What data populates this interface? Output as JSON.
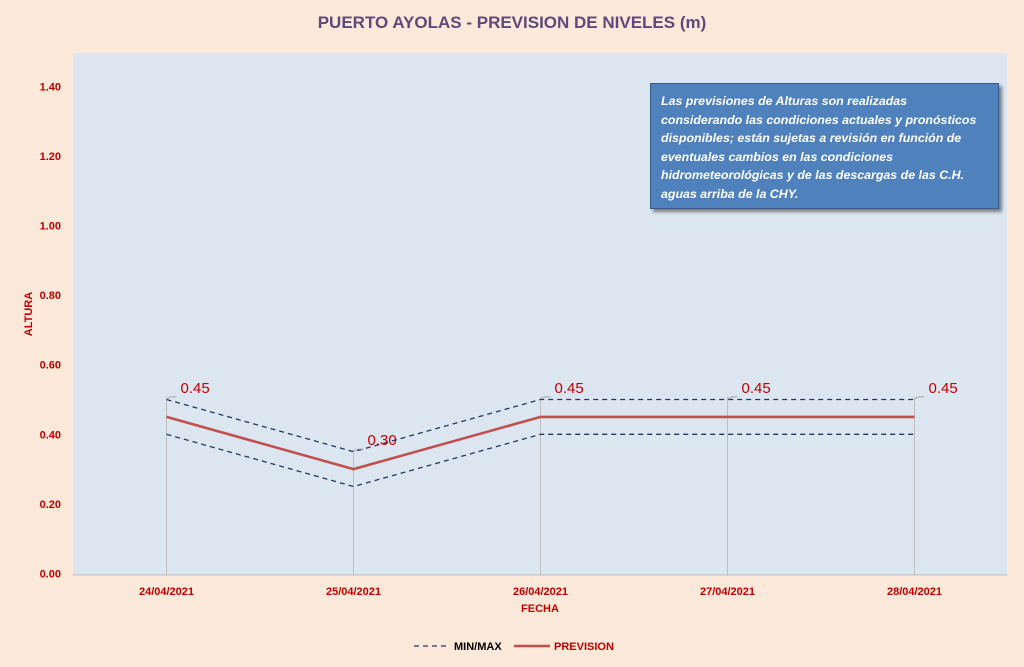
{
  "chart_data": {
    "type": "line",
    "title": "PUERTO AYOLAS - PREVISION DE NIVELES (m)",
    "xlabel": "FECHA",
    "ylabel": "ALTURA",
    "categories": [
      "24/04/2021",
      "25/04/2021",
      "26/04/2021",
      "27/04/2021",
      "28/04/2021"
    ],
    "ylim": [
      0,
      1.4
    ],
    "yticks": [
      "0.00",
      "0.20",
      "0.40",
      "0.60",
      "0.80",
      "1.00",
      "1.20",
      "1.40"
    ],
    "grid": false,
    "legend_position": "bottom",
    "series": [
      {
        "name": "MIN/MAX",
        "style": "dashed",
        "color": "#1f3864",
        "role": "max",
        "values": [
          0.5,
          0.35,
          0.5,
          0.5,
          0.5
        ]
      },
      {
        "name": "MIN/MAX",
        "style": "dashed",
        "color": "#1f3864",
        "role": "min",
        "values": [
          0.4,
          0.25,
          0.4,
          0.4,
          0.4
        ]
      },
      {
        "name": "PREVISION",
        "style": "solid",
        "color": "#c0504d",
        "values": [
          0.45,
          0.3,
          0.45,
          0.45,
          0.45
        ]
      }
    ],
    "data_labels": [
      "0.45",
      "0.30",
      "0.45",
      "0.45",
      "0.45"
    ],
    "legend": [
      {
        "label": "MIN/MAX",
        "style": "dashed",
        "color": "#1f3864"
      },
      {
        "label": "PREVISION",
        "style": "solid",
        "color": "#c0504d"
      }
    ],
    "annotation": "Las previsiones de Alturas son realizadas considerando las condiciones actuales y pronósticos disponibles;  están sujetas a revisión en función de eventuales cambios en las condiciones hidrometeorológicas y de las descargas de las C.H. aguas arriba de la CHY."
  },
  "colors": {
    "background": "#fde9d9",
    "plot_area": "#dce6f1",
    "title": "#5f497a",
    "labels": "#c00000",
    "note_box": "#4f81bd"
  }
}
